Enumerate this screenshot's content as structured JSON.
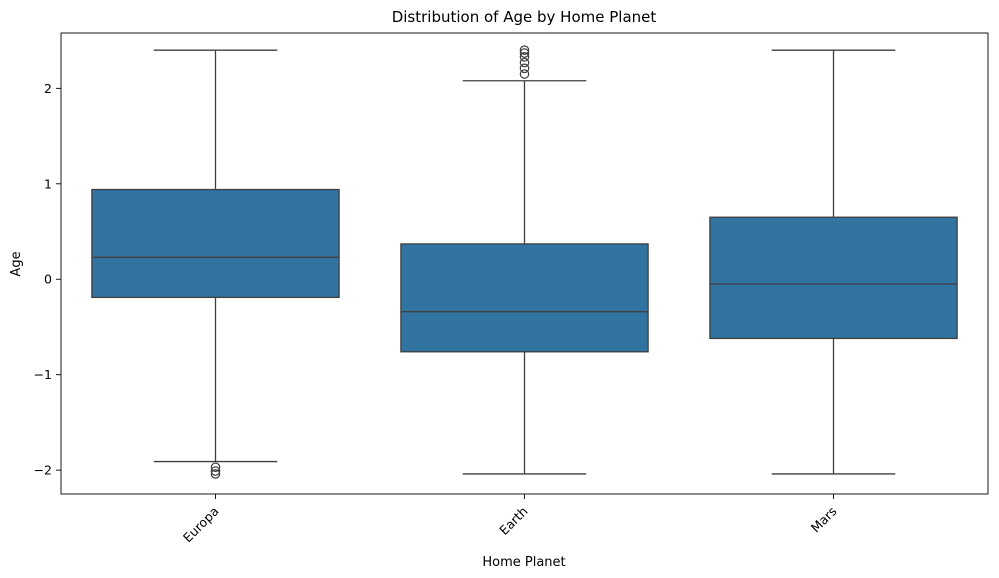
{
  "chart_data": {
    "type": "box",
    "title": "Distribution of Age by Home Planet",
    "xlabel": "Home Planet",
    "ylabel": "Age",
    "ylim": [
      -2.25,
      2.58
    ],
    "yticks": [
      -2,
      -1,
      0,
      1,
      2
    ],
    "ytick_labels": [
      "−2",
      "−1",
      "0",
      "1",
      "2"
    ],
    "grid": false,
    "color": "#3274a1",
    "categories": [
      "Europa",
      "Earth",
      "Mars"
    ],
    "boxes": [
      {
        "category": "Europa",
        "whisker_low": -1.91,
        "q1": -0.19,
        "median": 0.23,
        "q3": 0.94,
        "whisker_high": 2.4,
        "outliers": [
          -1.97,
          -2.01,
          -2.04
        ]
      },
      {
        "category": "Earth",
        "whisker_low": -2.04,
        "q1": -0.76,
        "median": -0.34,
        "q3": 0.37,
        "whisker_high": 2.08,
        "outliers": [
          2.15,
          2.21,
          2.27,
          2.33,
          2.37,
          2.4
        ]
      },
      {
        "category": "Mars",
        "whisker_low": -2.04,
        "q1": -0.62,
        "median": -0.05,
        "q3": 0.65,
        "whisker_high": 2.4,
        "outliers": []
      }
    ]
  }
}
